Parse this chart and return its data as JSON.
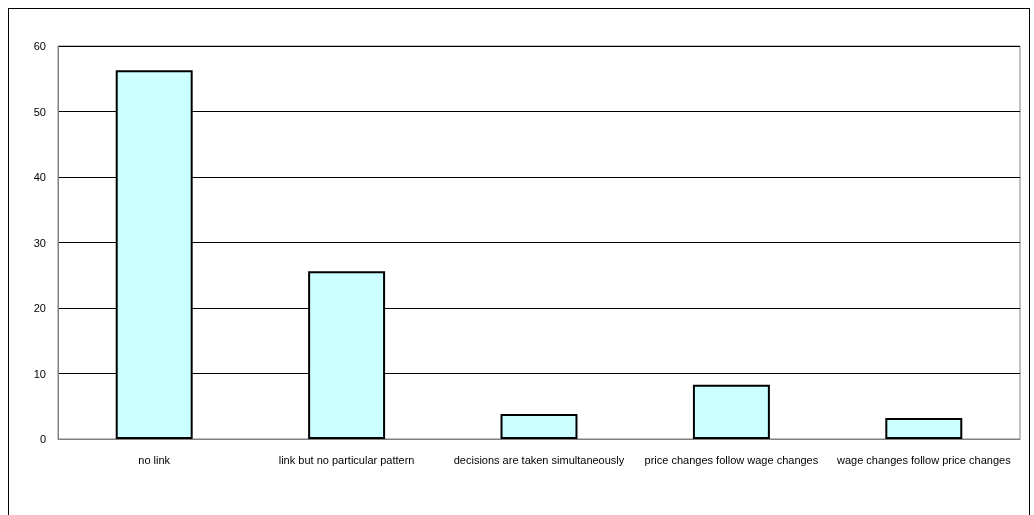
{
  "chart_data": {
    "type": "bar",
    "categories": [
      "no link",
      "link but no particular pattern",
      "decisions are taken simultaneously",
      "price changes follow wage changes",
      "wage changes follow price changes"
    ],
    "values": [
      56.3,
      25.6,
      3.8,
      8.3,
      3.2
    ],
    "color": "#ccffff",
    "ylim": [
      0,
      60
    ],
    "yticks": [
      0,
      10,
      20,
      30,
      40,
      50,
      60
    ],
    "grid": "y"
  }
}
